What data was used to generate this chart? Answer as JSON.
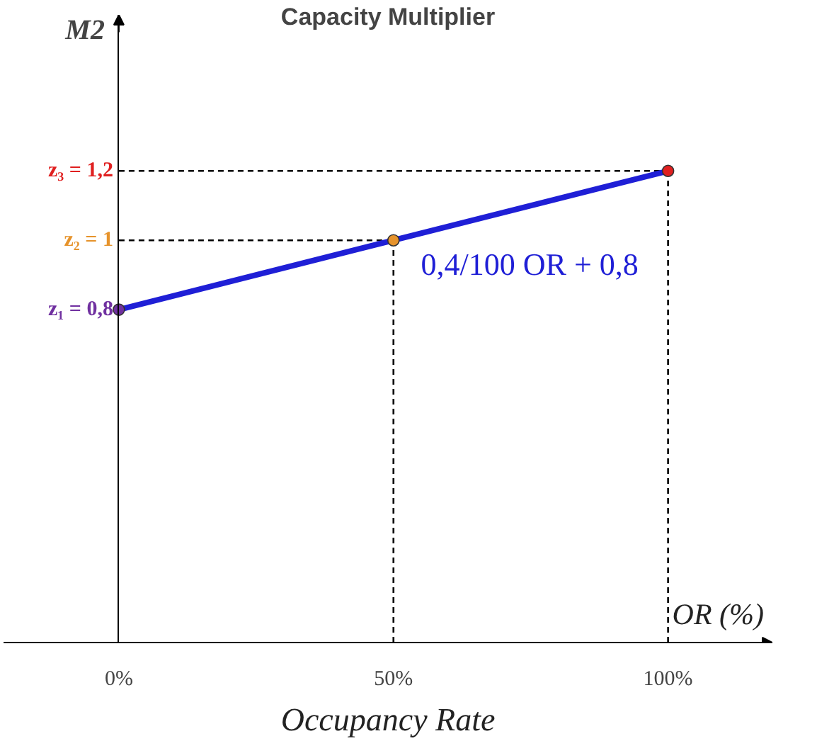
{
  "chart_data": {
    "type": "line",
    "title": "Capacity Multiplier",
    "xlabel": "Occupancy Rate",
    "ylabel": "M2",
    "x": [
      0,
      50,
      100
    ],
    "series": [
      {
        "color": "#1f1fd6",
        "values": [
          0.8,
          1,
          1.2
        ],
        "colors": [
          "#7030a0",
          "#e6932b",
          "#e02020"
        ]
      }
    ],
    "marker": "circle",
    "line_style": "solid",
    "xlim": [
      -21,
      119
    ],
    "ylim": [
      -0.16,
      1.65
    ],
    "xticks": [
      {
        "value": 0,
        "label": "0%"
      },
      {
        "value": 50,
        "label": "50%"
      },
      {
        "value": 100,
        "label": "100%"
      }
    ],
    "yticks": [
      {
        "value": 0.8,
        "label": "z₁ = 0,8"
      },
      {
        "value": 1,
        "label": "z₂ = 1"
      },
      {
        "value": 1.2,
        "label": "z₃ = 1,2"
      }
    ],
    "ref_lines": [
      {
        "axis": "x",
        "value": 50,
        "line_style": "dashed",
        "color": "#000000"
      },
      {
        "axis": "x",
        "value": 100,
        "line_style": "dashed",
        "color": "#000000"
      },
      {
        "axis": "y",
        "value": 1,
        "line_style": "dashed",
        "color": "#000000"
      },
      {
        "axis": "y",
        "value": 1.2,
        "line_style": "dashed",
        "color": "#000000"
      }
    ],
    "annotations": [
      "0,4/100 OR + 0,8",
      "OR (%)"
    ],
    "grid": false
  }
}
